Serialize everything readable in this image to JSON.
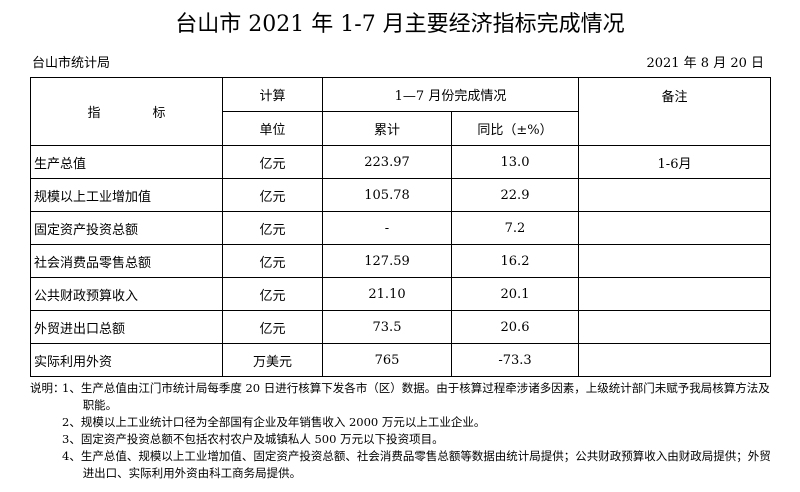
{
  "header": {
    "title": "台山市 2021 年 1-7 月主要经济指标完成情况",
    "agency": "台山市统计局",
    "date": "2021 年 8 月 20 日"
  },
  "table": {
    "head": {
      "indicator": "指　　　　标",
      "unit_top": "计算",
      "unit_bottom": "单位",
      "period": "1—7 月份完成情况",
      "cumulative": "累计",
      "yoy": "同比（±%）",
      "remark": "备注"
    },
    "rows": [
      [
        "生产总值",
        "亿元",
        "223.97",
        "13.0",
        "1-6月"
      ],
      [
        "规模以上工业增加值",
        "亿元",
        "105.78",
        "22.9",
        ""
      ],
      [
        "固定资产投资总额",
        "亿元",
        "-",
        "7.2",
        ""
      ],
      [
        "社会消费品零售总额",
        "亿元",
        "127.59",
        "16.2",
        ""
      ],
      [
        "公共财政预算收入",
        "亿元",
        "21.10",
        "20.1",
        ""
      ],
      [
        "外贸进出口总额",
        "亿元",
        "73.5",
        "20.6",
        ""
      ],
      [
        "实际利用外资",
        "万美元",
        "765",
        "-73.3",
        ""
      ]
    ]
  },
  "notes": {
    "label": "说明：",
    "items": [
      "1、生产总值由江门市统计局每季度 20 日进行核算下发各市（区）数据。由于核算过程牵涉诸多因素，上级统计部门未赋予我局核算方法及职能。",
      "2、规模以上工业统计口径为全部国有企业及年销售收入 2000 万元以上工业企业。",
      "3、固定资产投资总额不包括农村农户及城镇私人 500 万元以下投资项目。",
      "4、生产总值、规模以上工业增加值、固定资产投资总额、社会消费品零售总额等数据由统计局提供；公共财政预算收入由财政局提供；外贸进出口、实际利用外资由科工商务局提供。"
    ]
  }
}
